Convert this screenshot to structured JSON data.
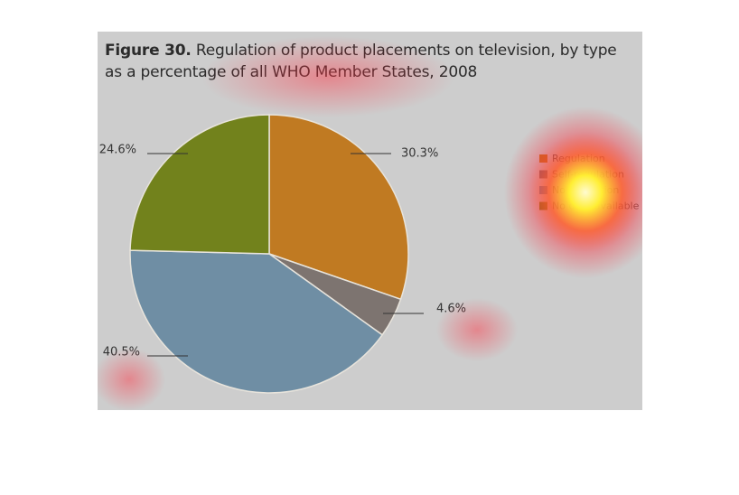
{
  "chart_data": {
    "type": "pie",
    "title_prefix": "Figure 30.",
    "title_rest": "Regulation of product placements on television, by type as a percentage of all WHO Member States, 2008",
    "categories": [
      "Regulation",
      "Self-regulation",
      "No regulation",
      "No data available"
    ],
    "values": [
      30.3,
      4.6,
      40.5,
      24.6
    ],
    "labels": [
      "30.3%",
      "4.6%",
      "40.5%",
      "24.6%"
    ],
    "colors": [
      "#c07a22",
      "#7d7470",
      "#6f8ea4",
      "#72821c"
    ],
    "legend_placement": "right"
  }
}
